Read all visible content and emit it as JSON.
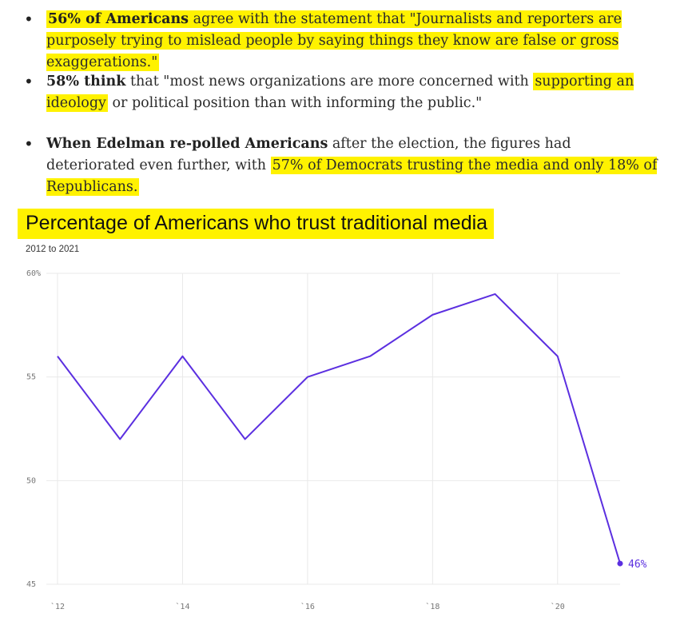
{
  "bullets": [
    {
      "bold": "56% of Americans",
      "text": " agree with the statement that \"Journalists and reporters are purposely trying to mislead people by saying things they know are false or gross exaggerations.\""
    },
    {
      "bold": "58% think",
      "pre": " that \"most news organizations are more concerned with ",
      "highlight": "supporting an ideology",
      "post": " or political position than with informing the public.\""
    },
    {
      "bold": "When Edelman re-polled Americans",
      "pre": " after the election, the figures had deteriorated even further, with ",
      "highlight": "57% of Democrats trusting the media and only 18% of Republicans."
    }
  ],
  "colors": {
    "highlight": "#fff200",
    "line": "#5b2fe0",
    "grid": "#e9e9e9"
  },
  "chart_data": {
    "type": "line",
    "title": "Percentage of Americans who trust traditional media",
    "subtitle": "2012 to 2021",
    "x": [
      2012,
      2013,
      2014,
      2015,
      2016,
      2017,
      2018,
      2019,
      2020,
      2021
    ],
    "values": [
      56,
      52,
      56,
      52,
      55,
      56,
      58,
      59,
      56,
      46
    ],
    "ylim": [
      45,
      60
    ],
    "yticks": [
      45,
      50,
      55,
      60
    ],
    "ytick_labels": [
      "45",
      "50",
      "55",
      "60%"
    ],
    "xticks": [
      2012,
      2014,
      2016,
      2018,
      2020
    ],
    "xtick_labels": [
      "`12",
      "`14",
      "`16",
      "`18",
      "`20"
    ],
    "end_label": "46%",
    "grid": true
  }
}
